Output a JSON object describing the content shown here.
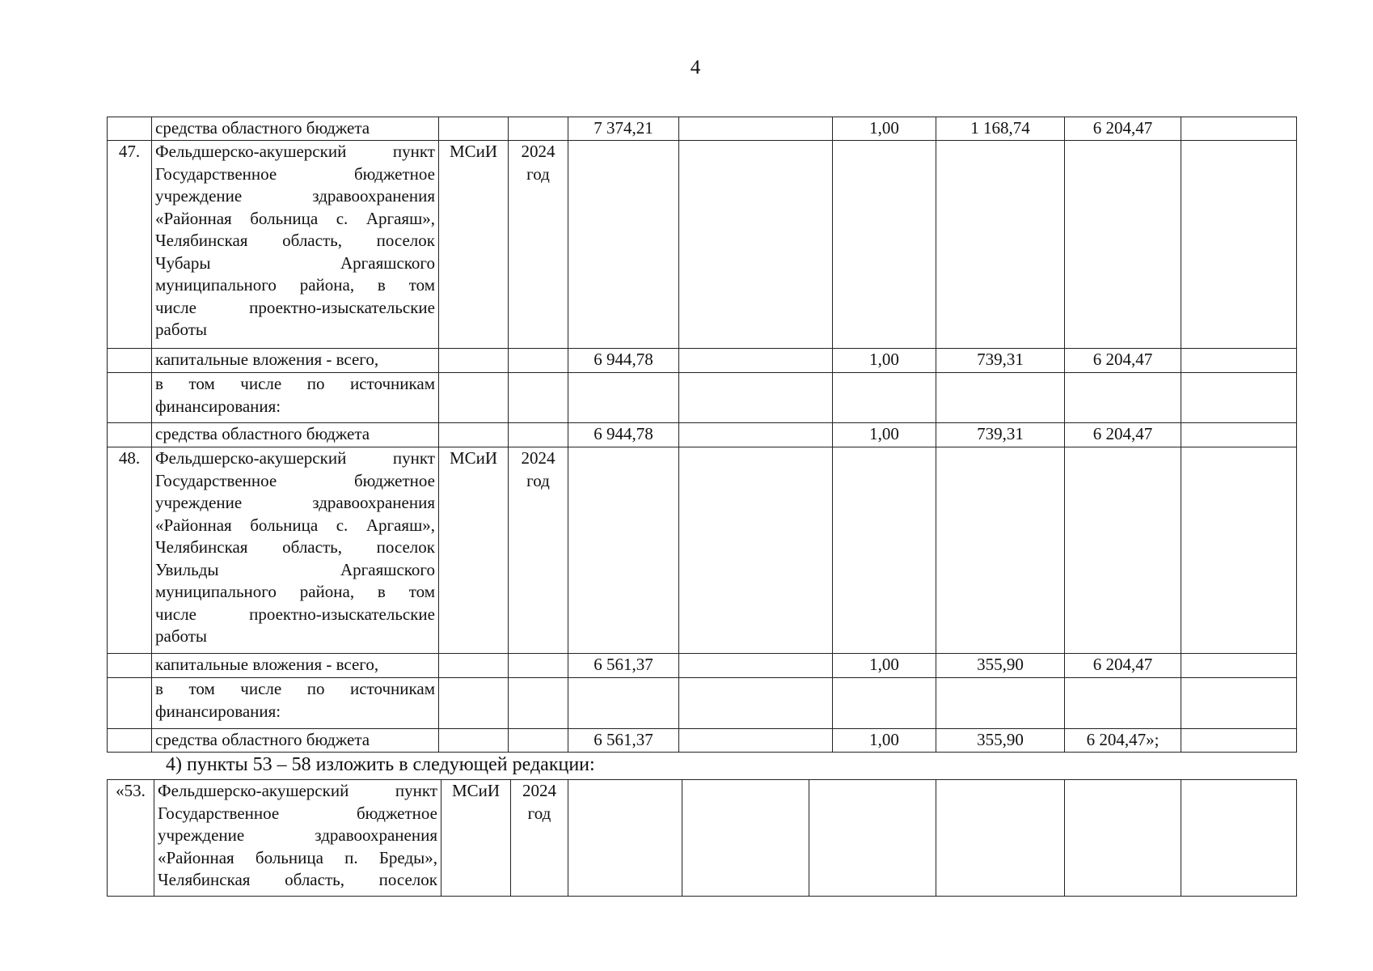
{
  "page_number": "4",
  "table1": {
    "rows": [
      {
        "num": "",
        "desc": [
          "средства областного бюджета"
        ],
        "org": "",
        "year": [],
        "values": [
          "7 374,21",
          "",
          "1,00",
          "1 168,74",
          "6 204,47",
          ""
        ]
      },
      {
        "num": "47.",
        "desc": [
          "Фельдшерско-акушерский пункт",
          "Государственное бюджетное",
          "учреждение здравоохранения",
          "«Районная больница с. Аргаяш»,",
          "Челябинская область, поселок",
          "Чубары Аргаяшского",
          "муниципального района, в том",
          "числе проектно-изыскательские",
          "работы"
        ],
        "org": "МСиИ",
        "year": [
          "2024",
          "год"
        ],
        "values": [
          "",
          "",
          "",
          "",
          "",
          ""
        ]
      },
      {
        "num": "",
        "desc": [
          "капитальные вложения - всего,"
        ],
        "org": "",
        "year": [],
        "values": [
          "6 944,78",
          "",
          "1,00",
          "739,31",
          "6 204,47",
          ""
        ]
      },
      {
        "num": "",
        "desc": [
          "в том числе по источникам",
          "финансирования:"
        ],
        "org": "",
        "year": [],
        "values": [
          "",
          "",
          "",
          "",
          "",
          ""
        ]
      },
      {
        "num": "",
        "desc": [
          "средства областного бюджета"
        ],
        "org": "",
        "year": [],
        "values": [
          "6 944,78",
          "",
          "1,00",
          "739,31",
          "6 204,47",
          ""
        ]
      },
      {
        "num": "48.",
        "desc": [
          "Фельдшерско-акушерский пункт",
          "Государственное бюджетное",
          "учреждение здравоохранения",
          "«Районная больница с. Аргаяш»,",
          "Челябинская область, поселок",
          "Увильды Аргаяшского",
          "муниципального района, в том",
          "числе проектно-изыскательские",
          "работы"
        ],
        "org": "МСиИ",
        "year": [
          "2024",
          "год"
        ],
        "values": [
          "",
          "",
          "",
          "",
          "",
          ""
        ]
      },
      {
        "num": "",
        "desc": [
          "капитальные вложения - всего,"
        ],
        "org": "",
        "year": [],
        "values": [
          "6 561,37",
          "",
          "1,00",
          "355,90",
          "6 204,47",
          ""
        ]
      },
      {
        "num": "",
        "desc": [
          "в том числе по источникам",
          "финансирования:"
        ],
        "org": "",
        "year": [],
        "values": [
          "",
          "",
          "",
          "",
          "",
          ""
        ]
      },
      {
        "num": "",
        "desc": [
          "средства областного бюджета"
        ],
        "org": "",
        "year": [],
        "values": [
          "6 561,37",
          "",
          "1,00",
          "355,90",
          "6 204,47»;",
          ""
        ]
      }
    ]
  },
  "instruction": "4) пункты 53 – 58 изложить в следующей редакции:",
  "table2": {
    "rows": [
      {
        "num": "«53.",
        "desc": [
          "Фельдшерско-акушерский пункт",
          "Государственное бюджетное",
          "учреждение здравоохранения",
          "«Районная больница п. Бреды»,",
          "Челябинская область, поселок"
        ],
        "org": "МСиИ",
        "year": [
          "2024",
          "год"
        ],
        "values": [
          "",
          "",
          "",
          "",
          "",
          ""
        ],
        "open": true
      }
    ]
  }
}
